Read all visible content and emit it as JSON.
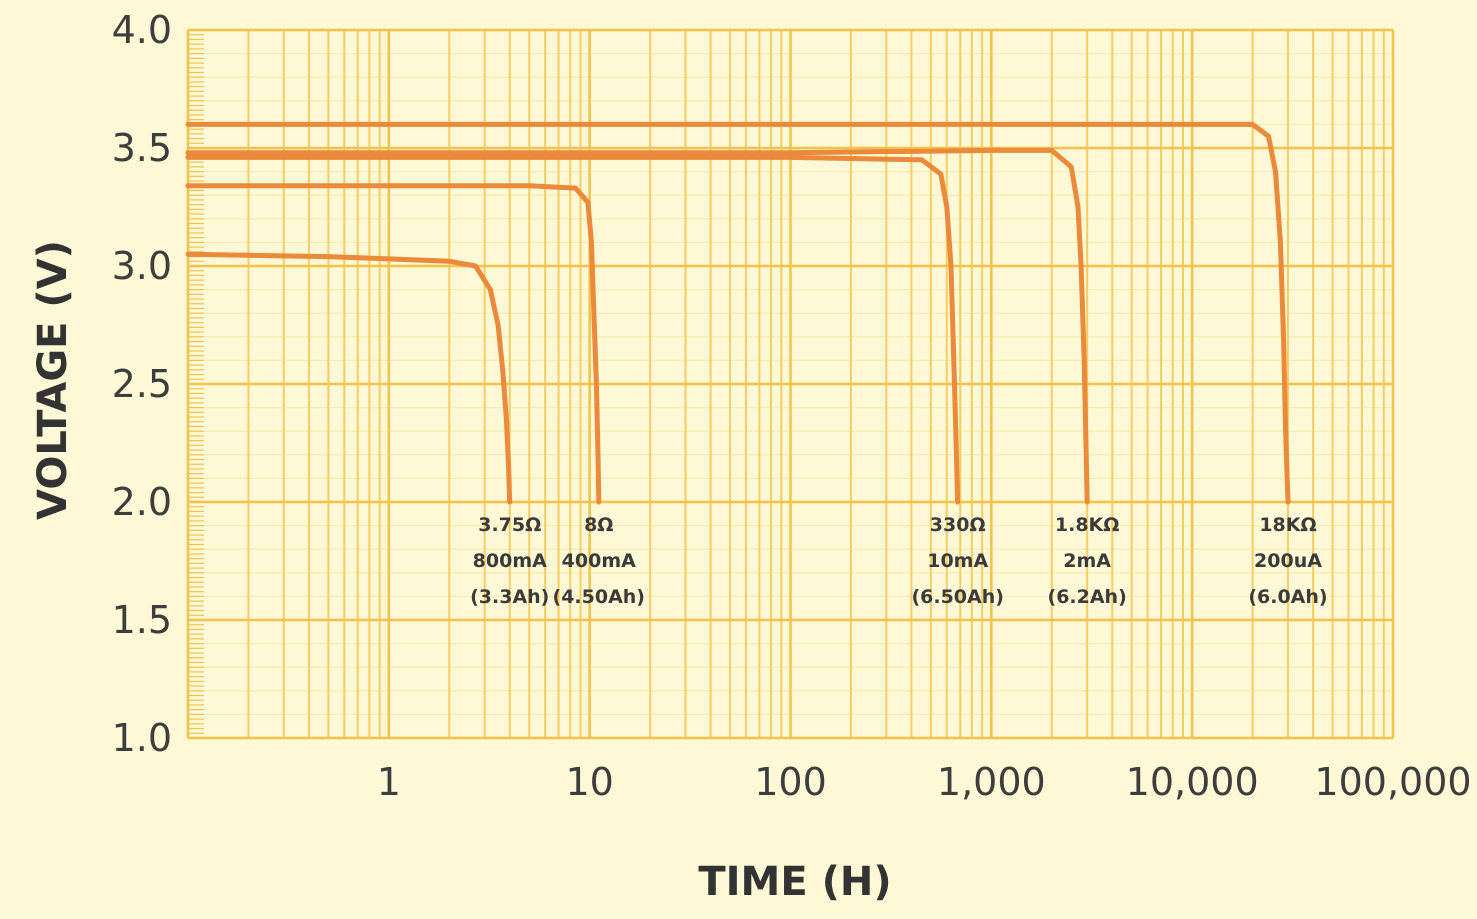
{
  "colors": {
    "background": "#fdf8d5",
    "grid": "#f4c24a",
    "grid_minor": "#f6cd62",
    "curve": "#ea8a3a",
    "text": "#3d3d3d"
  },
  "chart_data": {
    "type": "line",
    "title": "",
    "xlabel": "TIME (H)",
    "ylabel": "VOLTAGE (V)",
    "xscale": "log",
    "xlim": [
      0.1,
      100000
    ],
    "ylim": [
      1.0,
      4.0
    ],
    "grid": true,
    "x_ticks": [
      {
        "value": 1,
        "label": "1"
      },
      {
        "value": 10,
        "label": "10"
      },
      {
        "value": 100,
        "label": "100"
      },
      {
        "value": 1000,
        "label": "1,000"
      },
      {
        "value": 10000,
        "label": "10,000"
      },
      {
        "value": 100000,
        "label": "100,000"
      }
    ],
    "y_ticks": [
      {
        "value": 1.0,
        "label": "1.0"
      },
      {
        "value": 1.5,
        "label": "1.5"
      },
      {
        "value": 2.0,
        "label": "2.0"
      },
      {
        "value": 2.5,
        "label": "2.5"
      },
      {
        "value": 3.0,
        "label": "3.0"
      },
      {
        "value": 3.5,
        "label": "3.5"
      },
      {
        "value": 4.0,
        "label": "4.0"
      }
    ],
    "series": [
      {
        "label_lines": [
          "3.75Ω",
          "800mA",
          "(3.3Ah)"
        ],
        "x": [
          0.1,
          0.5,
          1,
          2,
          2.7,
          3.2,
          3.5,
          3.7,
          3.85,
          3.95,
          4.0
        ],
        "y": [
          3.05,
          3.04,
          3.03,
          3.02,
          3.0,
          2.9,
          2.75,
          2.55,
          2.35,
          2.15,
          2.0
        ]
      },
      {
        "label_lines": [
          "8Ω",
          "400mA",
          "(4.50Ah)"
        ],
        "x": [
          0.1,
          1,
          5,
          8.5,
          9.8,
          10.2,
          10.5,
          10.8,
          11.0,
          11.1
        ],
        "y": [
          3.34,
          3.34,
          3.34,
          3.33,
          3.27,
          3.1,
          2.8,
          2.5,
          2.2,
          2.0
        ]
      },
      {
        "label_lines": [
          "330Ω",
          "10mA",
          "(6.50Ah)"
        ],
        "x": [
          0.1,
          10,
          100,
          450,
          560,
          600,
          630,
          650,
          665,
          680
        ],
        "y": [
          3.46,
          3.46,
          3.46,
          3.45,
          3.39,
          3.25,
          3.0,
          2.6,
          2.3,
          2.0
        ]
      },
      {
        "label_lines": [
          "1.8KΩ",
          "2mA",
          "(6.2Ah)"
        ],
        "x": [
          0.1,
          10,
          100,
          1000,
          2000,
          2500,
          2700,
          2800,
          2900,
          2950,
          3000
        ],
        "y": [
          3.48,
          3.48,
          3.48,
          3.49,
          3.49,
          3.42,
          3.25,
          3.0,
          2.6,
          2.3,
          2.0
        ]
      },
      {
        "label_lines": [
          "18KΩ",
          "200uA",
          "(6.0Ah)"
        ],
        "x": [
          0.1,
          10,
          1000,
          10000,
          20000,
          24000,
          26000,
          27500,
          28500,
          29200,
          30000
        ],
        "y": [
          3.6,
          3.6,
          3.6,
          3.6,
          3.6,
          3.55,
          3.4,
          3.1,
          2.7,
          2.3,
          2.0
        ]
      }
    ]
  }
}
